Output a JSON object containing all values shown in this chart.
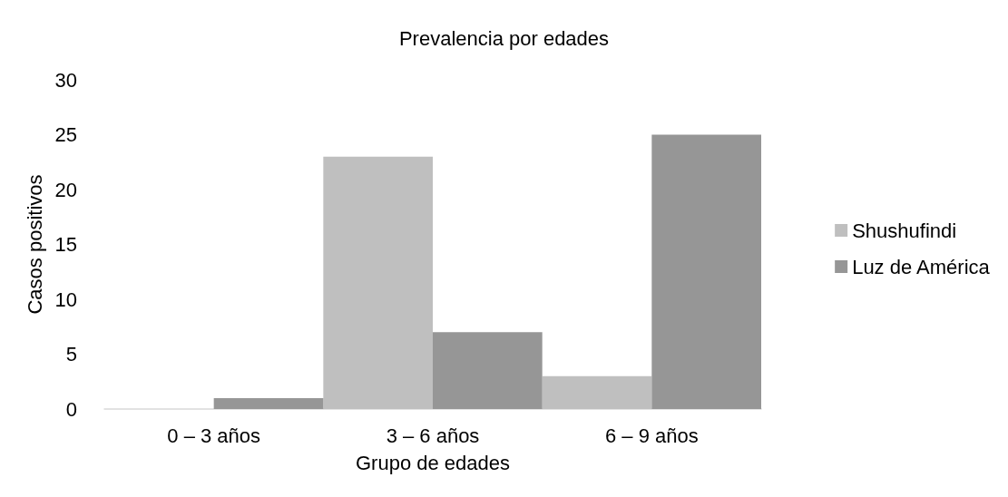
{
  "chart_data": {
    "type": "bar",
    "title": "Prevalencia por edades",
    "xlabel": "Grupo de edades",
    "ylabel": "Casos positivos",
    "categories": [
      "0 – 3 años",
      "3 – 6 años",
      "6 – 9 años"
    ],
    "series": [
      {
        "name": "Shushufindi",
        "color": "#bfbfbf",
        "values": [
          0,
          23,
          3
        ]
      },
      {
        "name": "Luz de América",
        "color": "#969696",
        "values": [
          1,
          7,
          25
        ]
      }
    ],
    "ylim": [
      0,
      30
    ],
    "yticks": [
      0,
      5,
      10,
      15,
      20,
      25,
      30
    ],
    "grid": false,
    "legend": "right"
  }
}
